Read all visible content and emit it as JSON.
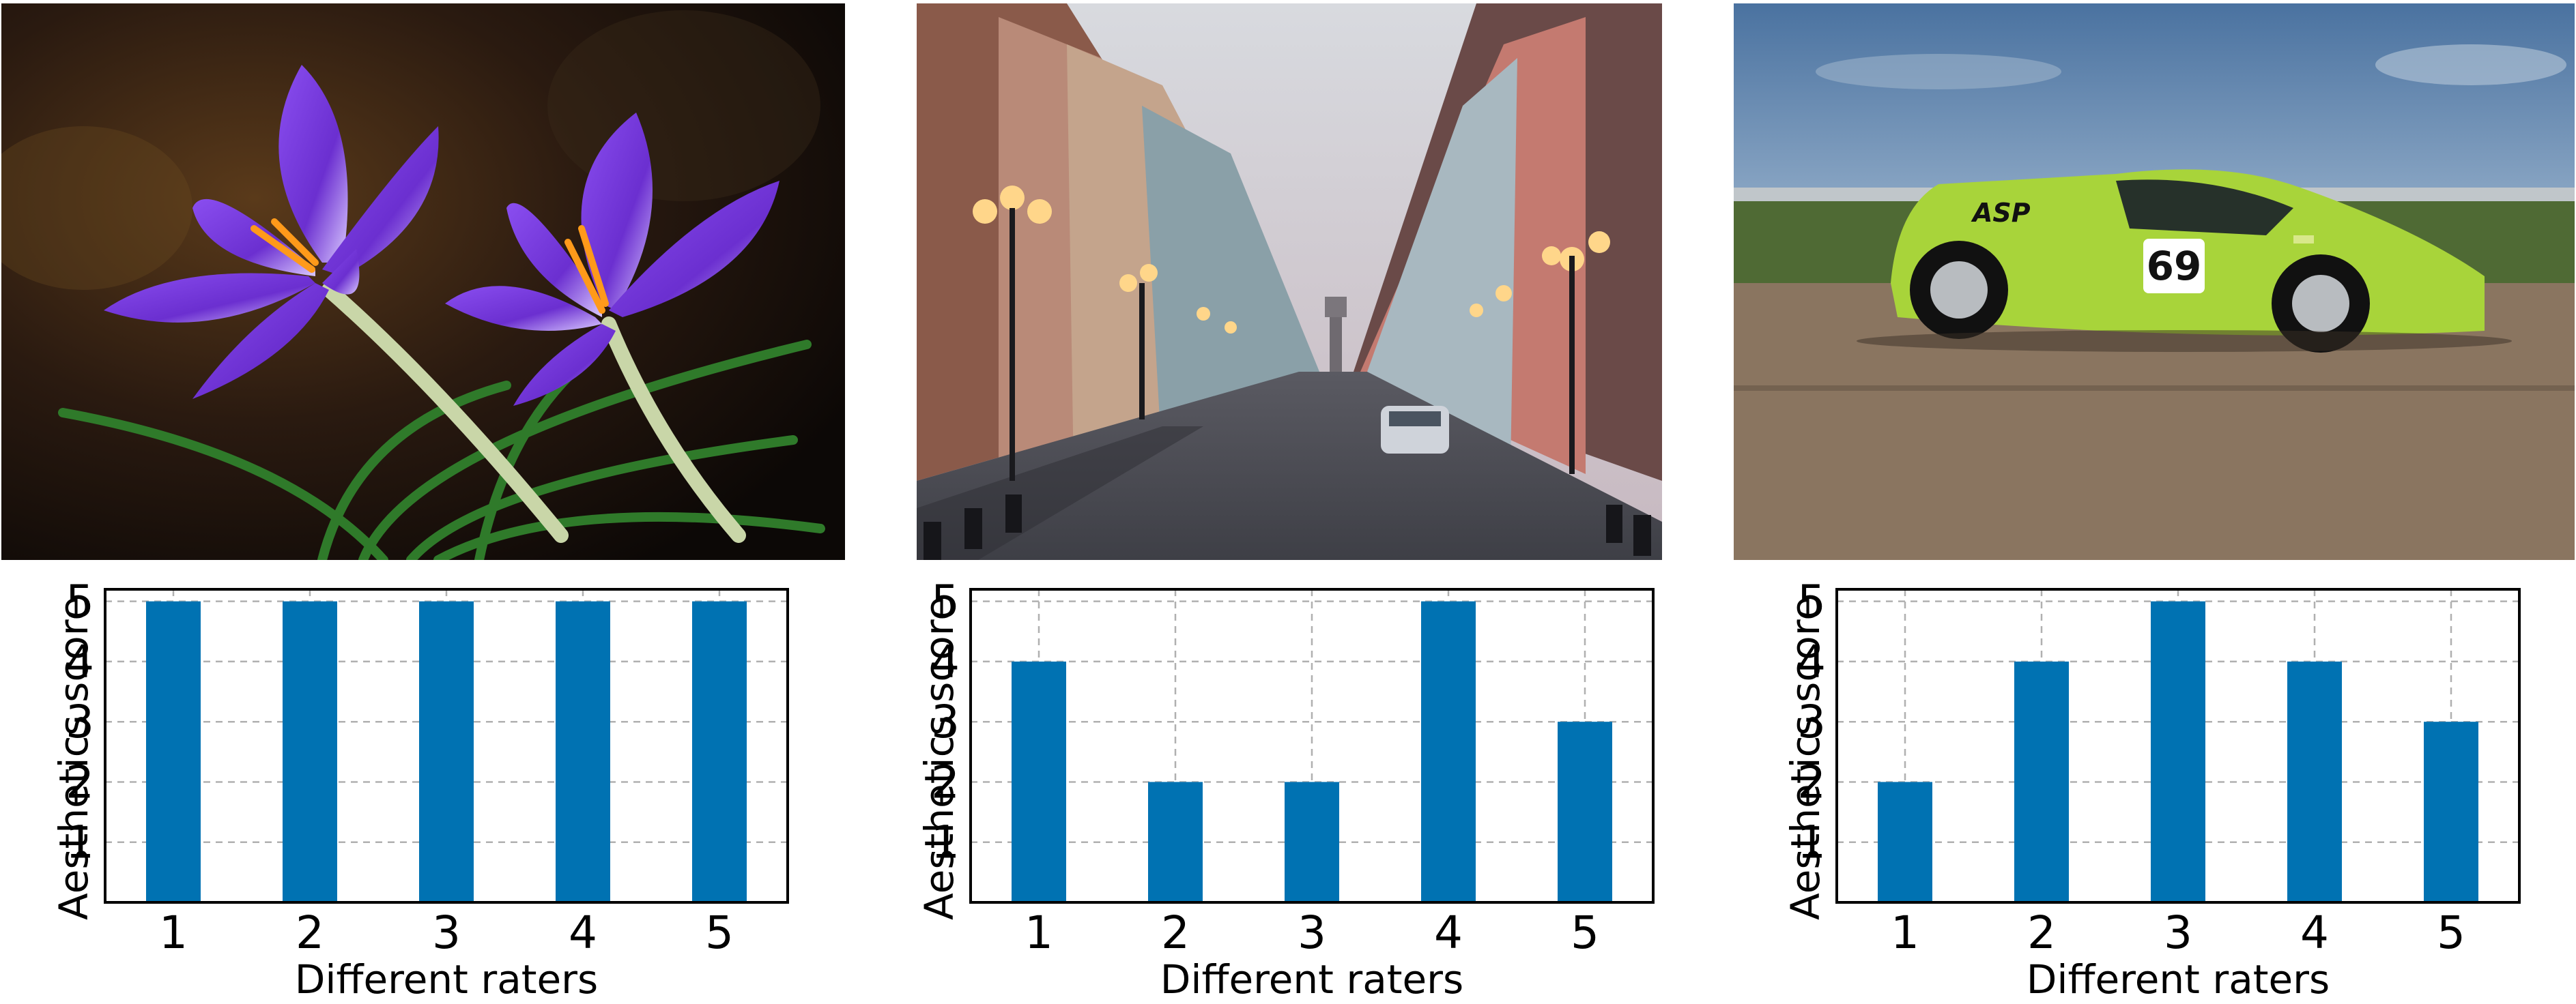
{
  "colors": {
    "bar": "#0072b2"
  },
  "photos": [
    {
      "icon": "crocus-flowers-photo"
    },
    {
      "icon": "city-street-photo"
    },
    {
      "icon": "race-car-photo",
      "car_number": "69",
      "car_text": "ASP"
    }
  ],
  "chart_data": [
    {
      "type": "bar",
      "categories": [
        "1",
        "2",
        "3",
        "4",
        "5"
      ],
      "values": [
        5,
        5,
        5,
        5,
        5
      ],
      "xlabel": "Different raters",
      "ylabel": "Aesthetics score",
      "ylim": [
        0,
        5.2
      ],
      "yticks": [
        "1",
        "2",
        "3",
        "4",
        "5"
      ],
      "grid": true
    },
    {
      "type": "bar",
      "categories": [
        "1",
        "2",
        "3",
        "4",
        "5"
      ],
      "values": [
        4,
        2,
        2,
        5,
        3
      ],
      "xlabel": "Different raters",
      "ylabel": "Aesthetics score",
      "ylim": [
        0,
        5.2
      ],
      "yticks": [
        "1",
        "2",
        "3",
        "4",
        "5"
      ],
      "grid": true
    },
    {
      "type": "bar",
      "categories": [
        "1",
        "2",
        "3",
        "4",
        "5"
      ],
      "values": [
        2,
        4,
        5,
        4,
        3
      ],
      "xlabel": "Different raters",
      "ylabel": "Aesthetics score",
      "ylim": [
        0,
        5.2
      ],
      "yticks": [
        "1",
        "2",
        "3",
        "4",
        "5"
      ],
      "grid": true
    }
  ]
}
